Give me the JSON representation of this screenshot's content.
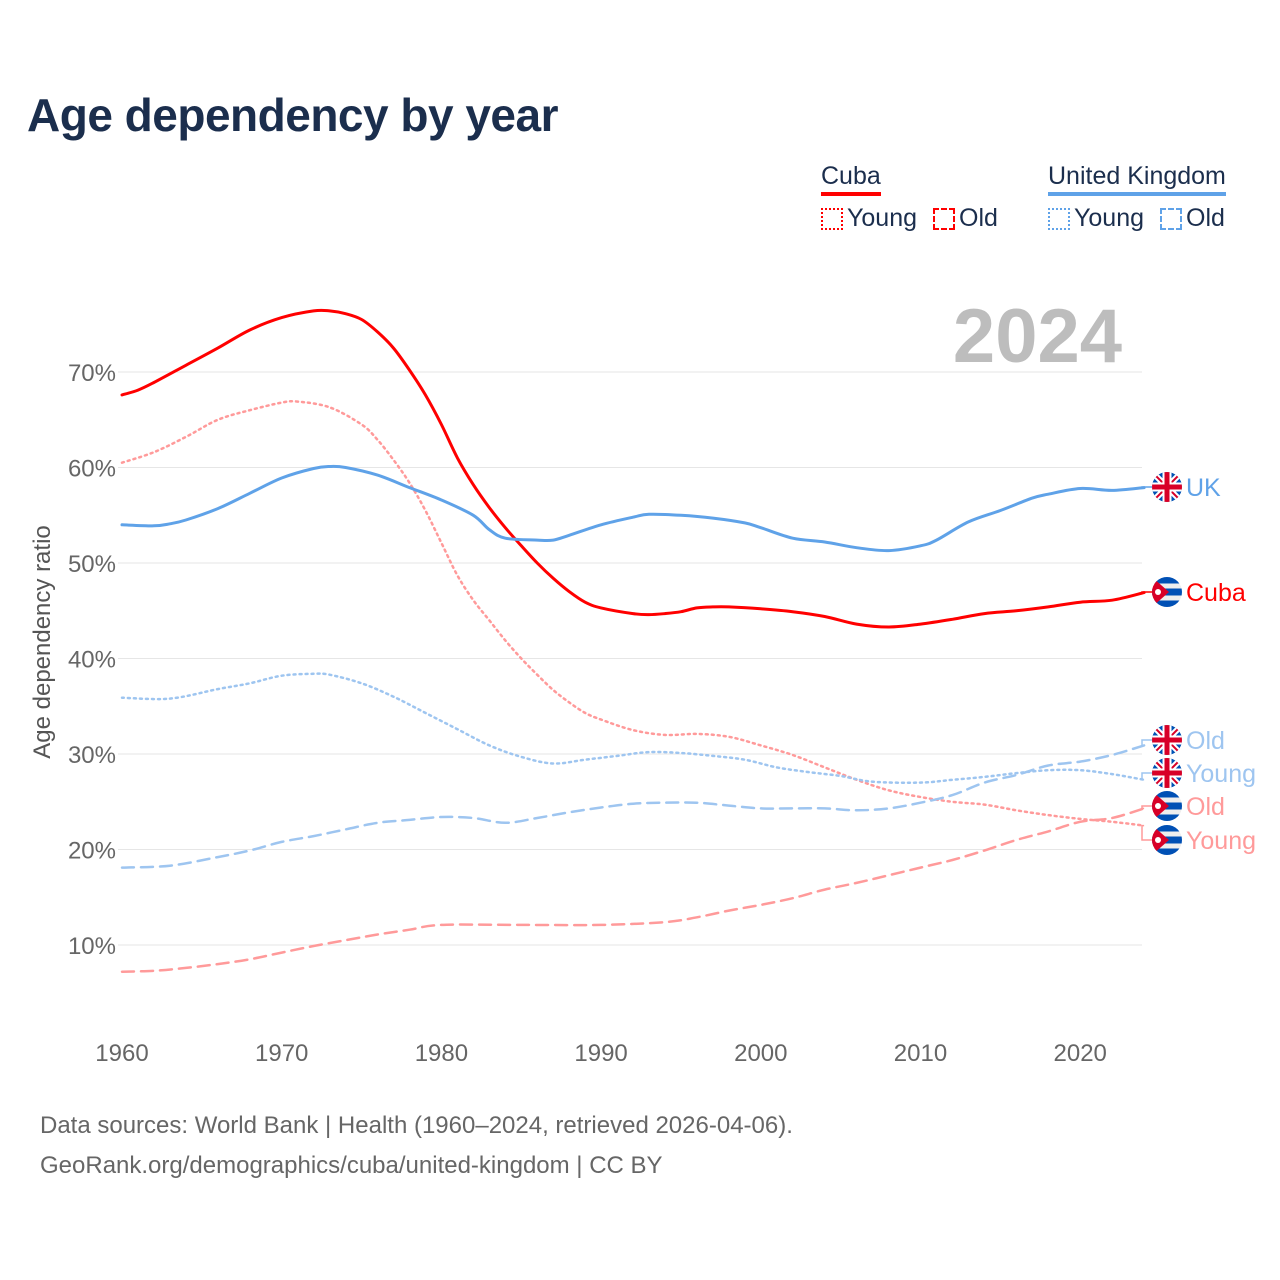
{
  "title": "Age dependency by year",
  "year_watermark": "2024",
  "legend": {
    "groups": [
      {
        "name": "Cuba",
        "color": "#ff0000",
        "items": [
          {
            "label": "Young",
            "style": "dotted"
          },
          {
            "label": "Old",
            "style": "dashed"
          }
        ]
      },
      {
        "name": "United Kingdom",
        "color": "#5fa2e8",
        "items": [
          {
            "label": "Young",
            "style": "dotted"
          },
          {
            "label": "Old",
            "style": "dashed"
          }
        ]
      }
    ]
  },
  "source": {
    "line1": "Data sources: World Bank | Health (1960–2024, retrieved 2026-04-06).",
    "line2": "GeoRank.org/demographics/cuba/united-kingdom | CC BY"
  },
  "chart_data": {
    "type": "line",
    "title": "Age dependency by year",
    "xlabel": "",
    "ylabel": "Age dependency ratio",
    "xlim": [
      1960,
      2024
    ],
    "ylim": [
      0,
      80
    ],
    "x_ticks": [
      1960,
      1970,
      1980,
      1990,
      2000,
      2010,
      2020
    ],
    "y_ticks": [
      10,
      20,
      30,
      40,
      50,
      60,
      70
    ],
    "y_tick_labels": [
      "10%",
      "20%",
      "30%",
      "40%",
      "50%",
      "60%",
      "70%"
    ],
    "grid": true,
    "legend_position": "top-right",
    "series": [
      {
        "name": "Cuba",
        "label": "Cuba",
        "color": "#ff0000",
        "style": "solid",
        "flag": "cuba",
        "x": [
          1960,
          1961,
          1962,
          1964,
          1966,
          1968,
          1970,
          1972,
          1973,
          1974,
          1975,
          1976,
          1977,
          1978,
          1979,
          1980,
          1981,
          1982,
          1983,
          1984,
          1985,
          1986,
          1987,
          1988,
          1989,
          1990,
          1992,
          1993,
          1994,
          1995,
          1996,
          1997,
          1998,
          2000,
          2002,
          2004,
          2006,
          2008,
          2010,
          2012,
          2014,
          2016,
          2018,
          2020,
          2022,
          2024
        ],
        "y": [
          67.6,
          68.1,
          68.9,
          70.7,
          72.5,
          74.4,
          75.7,
          76.4,
          76.4,
          76.1,
          75.5,
          74.2,
          72.5,
          70.2,
          67.6,
          64.5,
          61.0,
          58.2,
          55.8,
          53.7,
          51.8,
          50.0,
          48.4,
          47.0,
          45.9,
          45.3,
          44.7,
          44.6,
          44.7,
          44.9,
          45.3,
          45.4,
          45.4,
          45.2,
          44.9,
          44.4,
          43.6,
          43.3,
          43.6,
          44.1,
          44.7,
          45.0,
          45.4,
          45.9,
          46.1,
          46.9
        ]
      },
      {
        "name": "Cuba Young",
        "label": "Young",
        "color": "#ff9a9a",
        "style": "dotted",
        "flag": "cuba",
        "x": [
          1960,
          1962,
          1964,
          1966,
          1968,
          1970,
          1971,
          1973,
          1975,
          1976,
          1977,
          1978,
          1979,
          1980,
          1981,
          1982,
          1983,
          1984,
          1985,
          1986,
          1987,
          1988,
          1989,
          1990,
          1992,
          1994,
          1996,
          1998,
          2000,
          2002,
          2004,
          2006,
          2008,
          2010,
          2012,
          2014,
          2016,
          2018,
          2020,
          2022,
          2024
        ],
        "y": [
          60.5,
          61.6,
          63.2,
          65.0,
          66.0,
          66.8,
          66.9,
          66.3,
          64.5,
          62.9,
          60.8,
          58.4,
          55.5,
          52.1,
          48.7,
          46.1,
          44.0,
          41.9,
          40.0,
          38.3,
          36.7,
          35.4,
          34.3,
          33.6,
          32.5,
          32.0,
          32.1,
          31.8,
          30.9,
          29.9,
          28.6,
          27.3,
          26.2,
          25.5,
          25.0,
          24.7,
          24.1,
          23.6,
          23.2,
          22.9,
          22.5
        ]
      },
      {
        "name": "Cuba Old",
        "label": "Old",
        "color": "#ff9a9a",
        "style": "dashed",
        "flag": "cuba",
        "x": [
          1960,
          1962,
          1964,
          1966,
          1968,
          1970,
          1972,
          1974,
          1976,
          1978,
          1980,
          1985,
          1990,
          1994,
          1996,
          1998,
          2000,
          2002,
          2004,
          2006,
          2008,
          2010,
          2012,
          2014,
          2016,
          2018,
          2020,
          2022,
          2024
        ],
        "y": [
          7.2,
          7.3,
          7.6,
          8.0,
          8.5,
          9.2,
          9.9,
          10.5,
          11.1,
          11.6,
          12.1,
          12.1,
          12.1,
          12.4,
          12.9,
          13.6,
          14.2,
          14.9,
          15.8,
          16.5,
          17.3,
          18.1,
          18.9,
          19.9,
          21.0,
          21.9,
          22.9,
          23.3,
          24.3
        ]
      },
      {
        "name": "United Kingdom",
        "label": "UK",
        "color": "#5fa2e8",
        "style": "solid",
        "flag": "uk",
        "x": [
          1960,
          1962,
          1963,
          1964,
          1966,
          1968,
          1970,
          1972,
          1973,
          1974,
          1976,
          1978,
          1980,
          1982,
          1983,
          1984,
          1986,
          1987,
          1988,
          1990,
          1992,
          1993,
          1995,
          1997,
          1999,
          2000,
          2002,
          2004,
          2006,
          2008,
          2010,
          2011,
          2013,
          2015,
          2017,
          2018,
          2020,
          2022,
          2024
        ],
        "y": [
          54.0,
          53.9,
          54.1,
          54.5,
          55.7,
          57.3,
          58.9,
          59.9,
          60.1,
          60.0,
          59.2,
          57.9,
          56.6,
          55.0,
          53.5,
          52.6,
          52.4,
          52.4,
          52.9,
          54.0,
          54.8,
          55.1,
          55.0,
          54.7,
          54.2,
          53.7,
          52.6,
          52.2,
          51.6,
          51.3,
          51.8,
          52.4,
          54.3,
          55.5,
          56.8,
          57.2,
          57.8,
          57.6,
          57.9
        ]
      },
      {
        "name": "United Kingdom Young",
        "label": "Young",
        "color": "#9ec5f0",
        "style": "dotted",
        "flag": "uk",
        "x": [
          1960,
          1963,
          1966,
          1968,
          1970,
          1972,
          1973,
          1975,
          1977,
          1979,
          1981,
          1983,
          1985,
          1987,
          1989,
          1991,
          1993,
          1995,
          1997,
          1999,
          2001,
          2003,
          2005,
          2007,
          2010,
          2012,
          2014,
          2016,
          2018,
          2020,
          2022,
          2024
        ],
        "y": [
          35.9,
          35.8,
          36.8,
          37.4,
          38.2,
          38.4,
          38.3,
          37.4,
          36.0,
          34.3,
          32.6,
          30.9,
          29.7,
          29.0,
          29.4,
          29.8,
          30.2,
          30.1,
          29.8,
          29.4,
          28.6,
          28.1,
          27.7,
          27.1,
          27.0,
          27.3,
          27.6,
          28.0,
          28.3,
          28.3,
          27.9,
          27.3
        ]
      },
      {
        "name": "United Kingdom Old",
        "label": "Old",
        "color": "#9ec5f0",
        "style": "dashed",
        "flag": "uk",
        "x": [
          1960,
          1963,
          1966,
          1968,
          1970,
          1972,
          1974,
          1976,
          1978,
          1980,
          1982,
          1984,
          1986,
          1988,
          1990,
          1992,
          1994,
          1996,
          1998,
          2000,
          2002,
          2004,
          2006,
          2008,
          2010,
          2012,
          2014,
          2016,
          2018,
          2020,
          2022,
          2024
        ],
        "y": [
          18.1,
          18.3,
          19.2,
          19.9,
          20.8,
          21.4,
          22.1,
          22.8,
          23.1,
          23.4,
          23.3,
          22.8,
          23.3,
          23.9,
          24.4,
          24.8,
          24.9,
          24.9,
          24.6,
          24.3,
          24.3,
          24.3,
          24.1,
          24.3,
          24.9,
          25.7,
          27.0,
          27.8,
          28.8,
          29.2,
          29.9,
          30.9
        ]
      }
    ]
  }
}
